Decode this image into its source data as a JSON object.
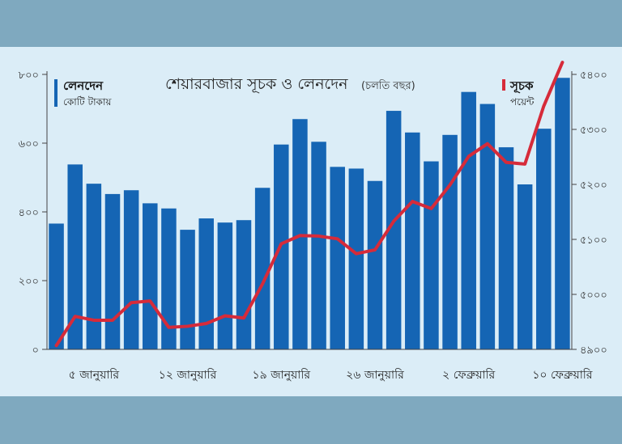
{
  "chart_data": {
    "type": "bar+line",
    "title": "শেয়ারবাজার সূচক ও লেনদেন",
    "subtitle": "(চলতি বছর)",
    "legend": [
      {
        "name": "লেনদেন",
        "unit": "কোটি টাকায়",
        "color": "#1565b4"
      },
      {
        "name": "সূচক",
        "unit": "পয়েন্ট",
        "color": "#d62b3a"
      }
    ],
    "left_axis": {
      "ylim": [
        0,
        800
      ],
      "ticks": [
        "০",
        "২০০",
        "৪০০",
        "৬০০",
        "৮০০"
      ],
      "tick_values": [
        0,
        200,
        400,
        600,
        800
      ]
    },
    "right_axis": {
      "ylim": [
        4900,
        5400
      ],
      "ticks": [
        "৪৯০০",
        "৫০০০",
        "৫১০০",
        "৫২০০",
        "৫৩০০",
        "৫৪০০"
      ],
      "tick_values": [
        4900,
        5000,
        5100,
        5200,
        5300,
        5400
      ]
    },
    "x_tick_labels": [
      "৫ জানুয়ারি",
      "১২ জানুয়ারি",
      "১৯ জানুয়ারি",
      "২৬ জানুয়ারি",
      "২ ফেব্রুয়ারি",
      "১০ ফেব্রুয়ারি"
    ],
    "x_tick_positions": [
      2,
      7,
      12,
      17,
      22,
      27
    ],
    "series": [
      {
        "name": "লেনদেন",
        "type": "bar",
        "axis": "left",
        "values": [
          366,
          538,
          482,
          452,
          463,
          425,
          410,
          348,
          381,
          369,
          376,
          470,
          596,
          670,
          604,
          531,
          526,
          490,
          694,
          631,
          547,
          624,
          749,
          714,
          588,
          480,
          642,
          790
        ]
      },
      {
        "name": "সূচক",
        "type": "line",
        "axis": "right",
        "values": [
          4907,
          4960,
          4953,
          4953,
          4985,
          4988,
          4940,
          4942,
          4947,
          4961,
          4957,
          5019,
          5092,
          5107,
          5106,
          5101,
          5074,
          5081,
          5133,
          5169,
          5156,
          5199,
          5251,
          5274,
          5240,
          5237,
          5342,
          5422
        ]
      }
    ]
  }
}
